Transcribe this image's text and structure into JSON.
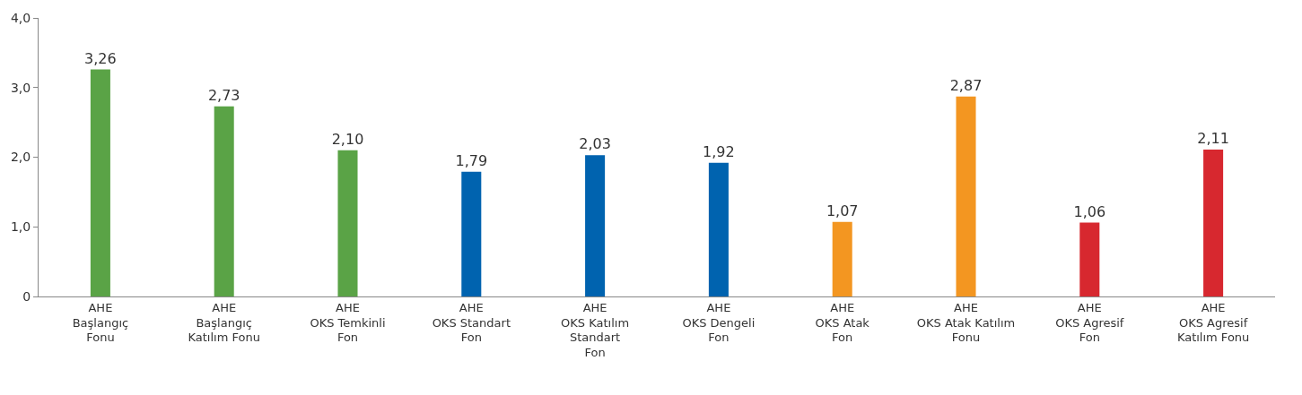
{
  "chart_data": {
    "type": "bar",
    "categories": [
      "AHE\nBaşlangıç\nFonu",
      "AHE\nBaşlangıç\nKatılım Fonu",
      "AHE\nOKS Temkinli\nFon",
      "AHE\nOKS Standart\nFon",
      "AHE\nOKS Katılım\nStandart\nFon",
      "AHE\nOKS Dengeli\nFon",
      "AHE\nOKS Atak\nFon",
      "AHE\nOKS Atak Katılım\nFonu",
      "AHE\nOKS Agresif\nFon",
      "AHE\nOKS Agresif\nKatılım Fonu"
    ],
    "values": [
      3.26,
      2.73,
      2.1,
      1.79,
      2.03,
      1.92,
      1.07,
      2.87,
      1.06,
      2.11
    ],
    "colors": [
      "#5aa346",
      "#5aa346",
      "#5aa346",
      "#0063af",
      "#0063af",
      "#0063af",
      "#f39621",
      "#f39621",
      "#d7282f",
      "#d7282f"
    ],
    "value_labels": [
      "3,26",
      "2,73",
      "2,10",
      "1,79",
      "2,03",
      "1,92",
      "1,07",
      "2,87",
      "1,06",
      "2,11"
    ],
    "ylim": [
      0,
      4
    ],
    "yticks": [
      0,
      {
        "value": 1,
        "label": "1,0"
      },
      {
        "value": 2,
        "label": "2,0"
      },
      {
        "value": 3,
        "label": "3,0"
      },
      {
        "value": 4,
        "label": "4,0"
      }
    ],
    "legend": false
  }
}
